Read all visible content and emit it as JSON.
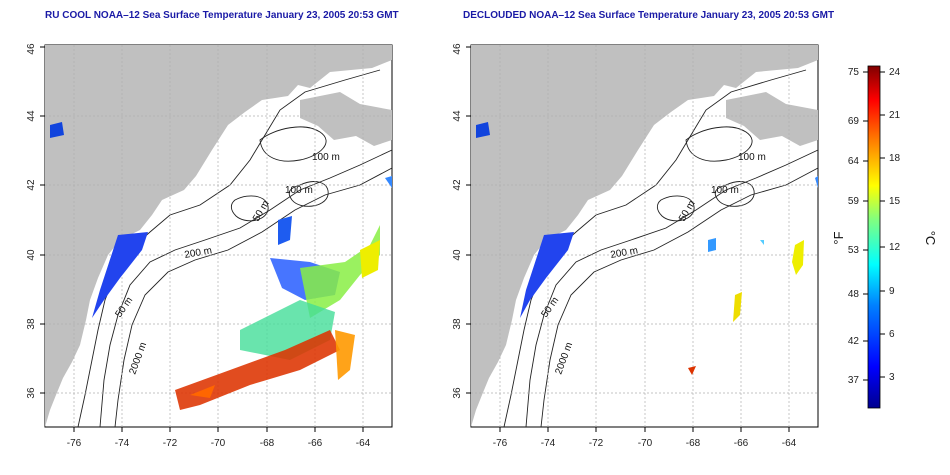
{
  "panels": [
    {
      "title": "RU COOL NOAA–12 Sea Surface Temperature January 23, 2005 20:53 GMT",
      "x_ticks": [
        "-76",
        "-74",
        "-72",
        "-70",
        "-68",
        "-66",
        "-64"
      ],
      "y_ticks": [
        "36",
        "38",
        "40",
        "42",
        "44",
        "46"
      ],
      "contour_labels": [
        "100 m",
        "100 m",
        "50 m",
        "200 m",
        "50 m",
        "2000 m"
      ]
    },
    {
      "title": "DECLOUDED NOAA–12 Sea Surface Temperature January 23, 2005 20:53 GMT",
      "x_ticks": [
        "-76",
        "-74",
        "-72",
        "-70",
        "-68",
        "-66",
        "-64"
      ],
      "y_ticks": [
        "36",
        "38",
        "40",
        "42",
        "44",
        "46"
      ],
      "contour_labels": [
        "100 m",
        "100 m",
        "50 m",
        "200 m",
        "50 m",
        "2000 m"
      ]
    }
  ],
  "colorbar": {
    "unit_f": "°F",
    "unit_c": "°C",
    "ticks_f": [
      "75",
      "69",
      "64",
      "59",
      "53",
      "48",
      "42",
      "37"
    ],
    "ticks_c": [
      "24",
      "21",
      "18",
      "15",
      "12",
      "9",
      "6",
      "3"
    ]
  },
  "colors": {
    "land": "#c0c0c0",
    "ocean": "#ffffff",
    "title": "#1a1aa6",
    "warm": "#cc2200",
    "cold": "#1133cc"
  }
}
